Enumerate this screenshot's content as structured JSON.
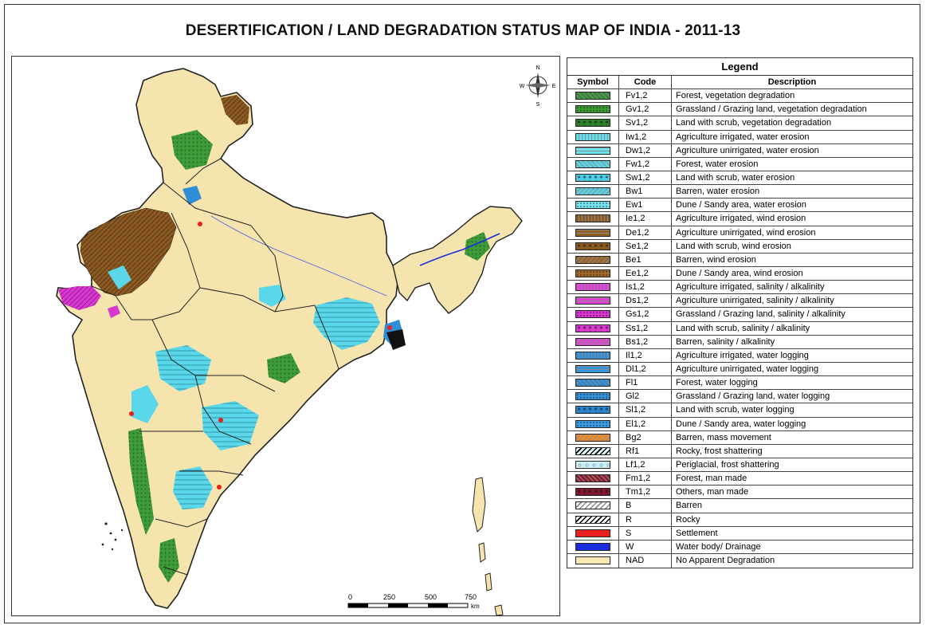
{
  "title": "DESERTIFICATION / LAND DEGRADATION STATUS MAP OF INDIA - 2011-13",
  "compass": {
    "n": "N",
    "s": "S",
    "e": "E",
    "w": "W"
  },
  "scale": {
    "ticks": [
      "0",
      "250",
      "500",
      "750"
    ],
    "unit": "km"
  },
  "legend": {
    "title": "Legend",
    "headers": {
      "symbol": "Symbol",
      "code": "Code",
      "description": "Description"
    },
    "items": [
      {
        "code": "Fv1,2",
        "description": "Forest, vegetation degradation",
        "color": "#2e8b2e",
        "pattern": "diag"
      },
      {
        "code": "Gv1,2",
        "description": "Grassland / Grazing land, vegetation degradation",
        "color": "#3c9a34",
        "pattern": "dots"
      },
      {
        "code": "Sv1,2",
        "description": "Land with scrub, vegetation degradation",
        "color": "#2f7f2a",
        "pattern": "blob"
      },
      {
        "code": "Iw1,2",
        "description": "Agriculture irrigated, water erosion",
        "color": "#5fe0ee",
        "pattern": "vert"
      },
      {
        "code": "Dw1,2",
        "description": "Agriculture unirrigated, water erosion",
        "color": "#6ae6f2",
        "pattern": "horiz"
      },
      {
        "code": "Fw1,2",
        "description": "Forest, water erosion",
        "color": "#57d6ea",
        "pattern": "diag"
      },
      {
        "code": "Sw1,2",
        "description": "Land with scrub, water erosion",
        "color": "#4fcfe4",
        "pattern": "blob"
      },
      {
        "code": "Bw1",
        "description": "Barren, water erosion",
        "color": "#56d2e6",
        "pattern": "diag2"
      },
      {
        "code": "Ew1",
        "description": "Dune / Sandy area, water erosion",
        "color": "#78e4f0",
        "pattern": "dots"
      },
      {
        "code": "Ie1,2",
        "description": "Agriculture irrigated, wind erosion",
        "color": "#8a5a22",
        "pattern": "vert"
      },
      {
        "code": "De1,2",
        "description": "Agriculture unirrigated, wind erosion",
        "color": "#925f26",
        "pattern": "horiz"
      },
      {
        "code": "Se1,2",
        "description": "Land with scrub, wind erosion",
        "color": "#8b5a20",
        "pattern": "blob"
      },
      {
        "code": "Be1",
        "description": "Barren, wind erosion",
        "color": "#9a6428",
        "pattern": "diag2"
      },
      {
        "code": "Ee1,2",
        "description": "Dune / Sandy area, wind erosion",
        "color": "#a06a2c",
        "pattern": "dots"
      },
      {
        "code": "Is1,2",
        "description": "Agriculture irrigated, salinity / alkalinity",
        "color": "#e23ad8",
        "pattern": "vert"
      },
      {
        "code": "Ds1,2",
        "description": "Agriculture unirrigated, salinity / alkalinity",
        "color": "#e040d6",
        "pattern": "horiz"
      },
      {
        "code": "Gs1,2",
        "description": "Grassland / Grazing land, salinity / alkalinity",
        "color": "#d936d0",
        "pattern": "dots"
      },
      {
        "code": "Ss1,2",
        "description": "Land with scrub, salinity / alkalinity",
        "color": "#d83ccf",
        "pattern": "blob"
      },
      {
        "code": "Bs1,2",
        "description": "Barren, salinity / alkalinity",
        "color": "#dc44d2",
        "pattern": "diag2"
      },
      {
        "code": "Il1,2",
        "description": "Agriculture irrigated, water logging",
        "color": "#2b8fd8",
        "pattern": "vert"
      },
      {
        "code": "Dl1,2",
        "description": "Agriculture unirrigated, water logging",
        "color": "#3196dc",
        "pattern": "horiz"
      },
      {
        "code": "Fl1",
        "description": "Forest, water logging",
        "color": "#2a88d2",
        "pattern": "diag"
      },
      {
        "code": "Gl2",
        "description": "Grassland / Grazing land, water logging",
        "color": "#3590d6",
        "pattern": "dots"
      },
      {
        "code": "Sl1,2",
        "description": "Land with scrub, water logging",
        "color": "#2c86cc",
        "pattern": "blob"
      },
      {
        "code": "El1,2",
        "description": "Dune / Sandy area, water logging",
        "color": "#3c9ae0",
        "pattern": "dots"
      },
      {
        "code": "Bg2",
        "description": "Barren, mass movement",
        "color": "#f08c28",
        "pattern": "diag2"
      },
      {
        "code": "Rf1",
        "description": "Rocky, frost shattering",
        "color": "#e4f6fa",
        "pattern": "diag2dark"
      },
      {
        "code": "Lf1,2",
        "description": "Periglacial, frost shattering",
        "color": "#cfeef6",
        "pattern": "rings"
      },
      {
        "code": "Fm1,2",
        "description": "Forest, man made",
        "color": "#8a1c2c",
        "pattern": "diag"
      },
      {
        "code": "Tm1,2",
        "description": "Others, man made",
        "color": "#7e1a30",
        "pattern": "blob"
      },
      {
        "code": "B",
        "description": "Barren",
        "color": "#ffffff",
        "pattern": "diag2gray"
      },
      {
        "code": "R",
        "description": "Rocky",
        "color": "#ffffff",
        "pattern": "diag2dark"
      },
      {
        "code": "S",
        "description": "Settlement",
        "color": "#e8201e",
        "pattern": "solid"
      },
      {
        "code": "W",
        "description": "Water body/ Drainage",
        "color": "#1a2ee0",
        "pattern": "solid"
      },
      {
        "code": "NAD",
        "description": "No Apparent Degradation",
        "color": "#fbe9b6",
        "pattern": "solid"
      }
    ]
  },
  "map_colors": {
    "nad": "#f6e4ae",
    "vegetation": "#3f9a3a",
    "water_erosion": "#5ad8ea",
    "wind_erosion": "#8c5a24",
    "salinity": "#d838d0",
    "water_logging": "#2f8ed6",
    "settlement": "#e8201e",
    "water_body": "#1a2ee0",
    "boundary": "#222222"
  }
}
